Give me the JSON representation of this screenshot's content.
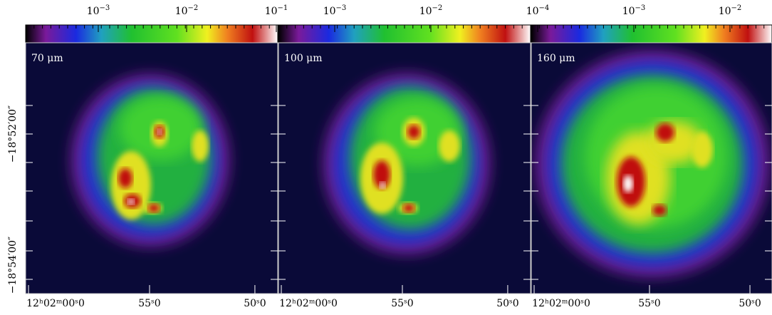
{
  "panels": [
    {
      "label": "70 μm",
      "colorbar_ticks": [
        {
          "base": "10",
          "exponent": "−3"
        },
        {
          "base": "10",
          "exponent": "−2"
        },
        {
          "base": "10",
          "exponent": "−1"
        }
      ],
      "x_labels": [
        "12ʰ02ᵐ00ˢ0",
        "55ˢ0",
        "50ˢ0"
      ]
    },
    {
      "label": "100 μm",
      "colorbar_ticks": [
        {
          "base": "10",
          "exponent": "−3"
        },
        {
          "base": "10",
          "exponent": "−2"
        }
      ],
      "x_labels": [
        "12ʰ02ᵐ00ˢ0",
        "55ˢ0",
        "50ˢ0"
      ]
    },
    {
      "label": "160 μm",
      "colorbar_ticks": [
        {
          "base": "10",
          "exponent": "−4"
        },
        {
          "base": "10",
          "exponent": "−3"
        },
        {
          "base": "10",
          "exponent": "−2"
        }
      ],
      "x_labels": [
        "12ʰ02ᵐ00ˢ0",
        "55ˢ0",
        "50ˢ0"
      ]
    }
  ],
  "y_labels": [
    "−18°52′00″",
    "−18°54′00″"
  ]
}
